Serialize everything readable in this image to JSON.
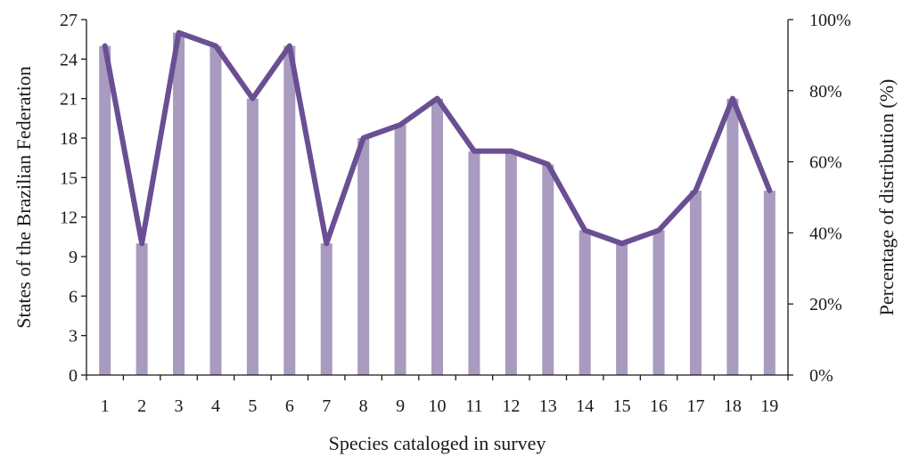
{
  "chart_data": {
    "type": "bar",
    "categories": [
      "1",
      "2",
      "3",
      "4",
      "5",
      "6",
      "7",
      "8",
      "9",
      "10",
      "11",
      "12",
      "13",
      "14",
      "15",
      "16",
      "17",
      "18",
      "19"
    ],
    "series": [
      {
        "type": "bar",
        "axis": "left",
        "values": [
          25,
          10,
          26,
          25,
          21,
          25,
          10,
          18,
          19,
          21,
          17,
          17,
          16,
          11,
          10,
          11,
          14,
          21,
          14
        ],
        "color": "#a89bbf"
      },
      {
        "type": "line",
        "axis": "right",
        "unit": "%",
        "values": [
          92.6,
          37.0,
          96.3,
          92.6,
          77.8,
          92.6,
          37.0,
          66.7,
          70.4,
          77.8,
          63.0,
          63.0,
          59.3,
          40.7,
          37.0,
          40.7,
          51.9,
          77.8,
          51.9
        ],
        "color": "#6a4f94"
      }
    ],
    "xlabel": "Species cataloged in survey",
    "ylabel": "States of the Brazilian Federation",
    "y2label": "Percentage of distribution (%)",
    "ylim": [
      0,
      27
    ],
    "yticks": [
      "0",
      "3",
      "6",
      "9",
      "12",
      "15",
      "18",
      "21",
      "24",
      "27"
    ],
    "y2lim": [
      0,
      100
    ],
    "y2ticks": [
      "0%",
      "20%",
      "40%",
      "60%",
      "80%",
      "100%"
    ],
    "grid": false
  }
}
